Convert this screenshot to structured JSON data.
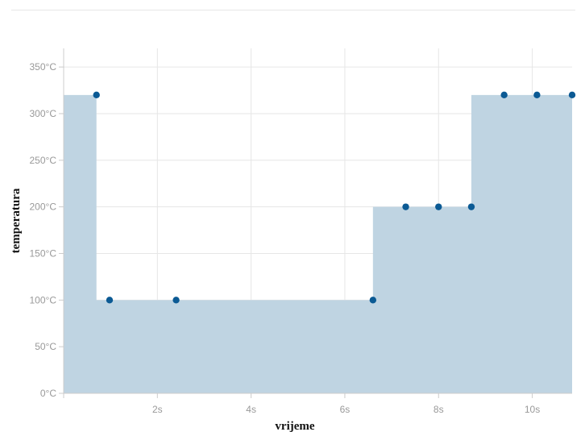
{
  "chart_data": {
    "type": "area",
    "interpolation": "step-after",
    "title": "",
    "xlabel": "vrijeme",
    "ylabel": "temperatura",
    "xlim": [
      0,
      10.85
    ],
    "ylim": [
      0,
      370
    ],
    "x_ticks": [
      {
        "value": 2,
        "label": "2s"
      },
      {
        "value": 4,
        "label": "4s"
      },
      {
        "value": 6,
        "label": "6s"
      },
      {
        "value": 8,
        "label": "8s"
      },
      {
        "value": 10,
        "label": "10s"
      }
    ],
    "y_ticks": [
      {
        "value": 0,
        "label": "0°C"
      },
      {
        "value": 50,
        "label": "50°C"
      },
      {
        "value": 100,
        "label": "100°C"
      },
      {
        "value": 150,
        "label": "150°C"
      },
      {
        "value": 200,
        "label": "200°C"
      },
      {
        "value": 250,
        "label": "250°C"
      },
      {
        "value": 300,
        "label": "300°C"
      },
      {
        "value": 350,
        "label": "350°C"
      }
    ],
    "steps": [
      {
        "x": 0,
        "y": 320
      },
      {
        "x": 0.7,
        "y": 100
      },
      {
        "x": 6.6,
        "y": 200
      },
      {
        "x": 8.7,
        "y": 320
      }
    ],
    "points": [
      {
        "x": 0.7,
        "y": 320
      },
      {
        "x": 0.98,
        "y": 100
      },
      {
        "x": 2.4,
        "y": 100
      },
      {
        "x": 6.6,
        "y": 100
      },
      {
        "x": 7.3,
        "y": 200
      },
      {
        "x": 8.0,
        "y": 200
      },
      {
        "x": 8.7,
        "y": 200
      },
      {
        "x": 9.4,
        "y": 320
      },
      {
        "x": 10.1,
        "y": 320
      },
      {
        "x": 10.85,
        "y": 320
      }
    ],
    "grid": true,
    "colors": {
      "area": "#bfd4e2",
      "area_edge": "#a9c3d6",
      "point": "#0b5a94",
      "grid": "#e6e6e6",
      "axis": "#cccccc"
    }
  }
}
